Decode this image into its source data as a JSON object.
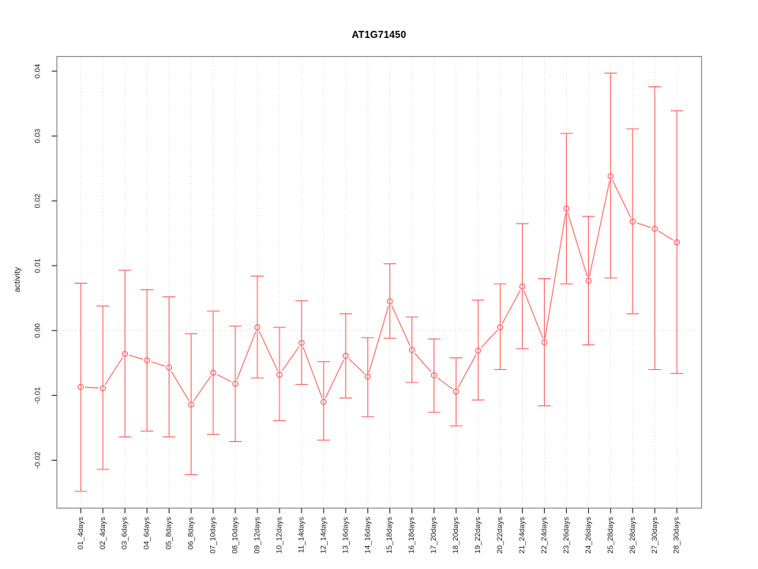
{
  "chart_data": {
    "type": "line",
    "title": "AT1G71450",
    "xlabel": "",
    "ylabel": "activity",
    "ylim": [
      -0.0255,
      0.0415
    ],
    "ytick_values": [
      0.04,
      0.03,
      0.02,
      0.01,
      0.0,
      -0.01,
      -0.02
    ],
    "ytick_labels": [
      "0.04",
      "0.03",
      "0.02",
      "0.01",
      "0.00",
      "-0.01",
      "-0.02"
    ],
    "grid": "vertical-dotted-per-category-plus-zero-line",
    "legend": "none",
    "marker": "open-circle",
    "categories": [
      "01_4days",
      "02_4days",
      "03_6days",
      "04_6days",
      "05_8days",
      "06_8days",
      "07_10days",
      "08_10days",
      "09_12days",
      "10_12days",
      "11_14days",
      "12_14days",
      "13_16days",
      "14_16days",
      "15_18days",
      "16_18days",
      "17_20days",
      "18_20days",
      "19_22days",
      "20_22days",
      "21_24days",
      "22_24days",
      "23_26days",
      "24_26days",
      "25_28days",
      "26_28days",
      "27_30days",
      "28_30days"
    ],
    "series": [
      {
        "name": "activity",
        "values": [
          -0.0087,
          -0.0089,
          -0.0036,
          -0.0046,
          -0.0057,
          -0.0114,
          -0.0065,
          -0.0082,
          0.0005,
          -0.0068,
          -0.0019,
          -0.011,
          -0.0039,
          -0.0071,
          0.0045,
          -0.003,
          -0.0069,
          -0.0094,
          -0.0031,
          0.0005,
          0.0068,
          -0.0018,
          0.0188,
          0.0077,
          0.0238,
          0.0168,
          0.0157,
          0.0136
        ],
        "upper": [
          0.0073,
          0.0038,
          0.0093,
          0.0063,
          0.0052,
          -0.0005,
          0.003,
          0.0007,
          0.0084,
          0.0005,
          0.0046,
          -0.0048,
          0.0026,
          -0.0011,
          0.0103,
          0.0021,
          -0.0013,
          -0.0042,
          0.0047,
          0.0072,
          0.0165,
          0.008,
          0.0304,
          0.0176,
          0.0397,
          0.0311,
          0.0376,
          0.0339
        ],
        "lower": [
          -0.0248,
          -0.0214,
          -0.0164,
          -0.0155,
          -0.0164,
          -0.0222,
          -0.016,
          -0.0171,
          -0.0073,
          -0.0139,
          -0.0083,
          -0.0169,
          -0.0104,
          -0.0133,
          -0.0012,
          -0.008,
          -0.0126,
          -0.0147,
          -0.0107,
          -0.006,
          -0.0028,
          -0.0116,
          0.0072,
          -0.0022,
          0.0081,
          0.0026,
          -0.006,
          -0.0066
        ]
      }
    ],
    "colors": {
      "series": "#ff6a6a",
      "grid": "#d4d4d4",
      "zero_line": "#d4d4d4",
      "box": "#878787",
      "tick": "#333333",
      "text": "#1a1a1a"
    }
  }
}
